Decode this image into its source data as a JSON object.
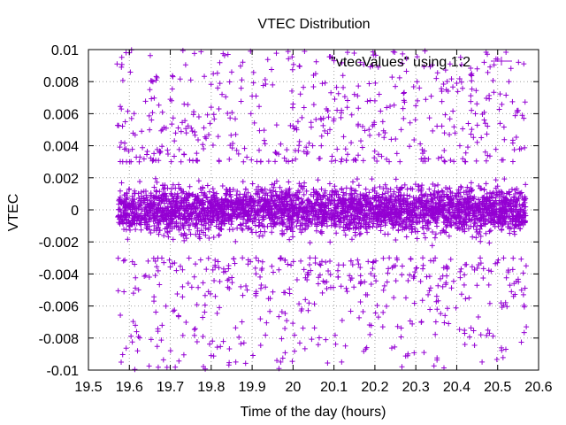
{
  "chart_data": {
    "type": "scatter",
    "title": "VTEC Distribution",
    "xlabel": "Time of the day (hours)",
    "ylabel": "VTEC",
    "xlim": [
      19.5,
      20.6
    ],
    "ylim": [
      -0.01,
      0.01
    ],
    "xticks": [
      "19.5",
      "19.6",
      "19.7",
      "19.8",
      "19.9",
      "20",
      "20.1",
      "20.2",
      "20.3",
      "20.4",
      "20.5",
      "20.6"
    ],
    "xtick_values": [
      19.5,
      19.6,
      19.7,
      19.8,
      19.9,
      20.0,
      20.1,
      20.2,
      20.3,
      20.4,
      20.5,
      20.6
    ],
    "yticks": [
      "0.01",
      "0.008",
      "0.006",
      "0.004",
      "0.002",
      "0",
      "-0.002",
      "-0.004",
      "-0.006",
      "-0.008",
      "-0.01"
    ],
    "ytick_values": [
      0.01,
      0.008,
      0.006,
      0.004,
      0.002,
      0.0,
      -0.002,
      -0.004,
      -0.006,
      -0.008,
      -0.01
    ],
    "grid": true,
    "legend_position": "top-right",
    "series": [
      {
        "name": "\"vtecValues\" using 1:2",
        "marker": "plus",
        "color": "#9400d3",
        "x_range": [
          19.57,
          20.57
        ],
        "core_band": [
          -0.003,
          0.003
        ],
        "x": [
          19.57,
          19.58,
          19.6,
          19.62,
          19.65,
          19.68,
          19.7,
          19.72,
          19.75,
          19.78,
          19.8,
          19.82,
          19.85,
          19.88,
          19.9,
          19.92,
          19.95,
          19.98,
          20.0,
          20.02,
          20.05,
          20.08,
          20.1,
          20.12,
          20.15,
          20.18,
          20.2,
          20.22,
          20.25,
          20.28,
          20.3,
          20.32,
          20.35,
          20.38,
          20.4,
          20.42,
          20.45,
          20.48,
          20.5,
          20.52,
          20.55,
          20.57,
          19.59,
          19.61,
          19.63,
          19.66,
          19.69,
          19.73,
          19.77,
          19.81,
          19.86,
          19.91,
          19.96,
          20.03,
          20.07,
          20.13,
          20.17,
          20.23,
          20.27,
          20.33,
          20.37,
          20.43,
          20.47,
          20.53,
          20.56,
          19.58,
          19.64,
          19.71,
          19.84,
          19.97,
          20.11,
          20.24,
          20.36,
          20.46,
          20.54
        ],
        "y": [
          0.0091,
          -0.0095,
          0.0098,
          -0.0088,
          0.0075,
          -0.0072,
          0.0069,
          -0.0066,
          0.0081,
          -0.0079,
          0.0064,
          -0.0061,
          0.0086,
          -0.0083,
          0.0071,
          -0.0068,
          0.0078,
          -0.0074,
          0.0066,
          -0.0063,
          0.0084,
          -0.0081,
          0.0093,
          -0.0069,
          0.0072,
          -0.0086,
          0.0068,
          -0.0064,
          0.0077,
          -0.0091,
          0.0065,
          -0.0089,
          0.0082,
          -0.0071,
          0.0079,
          -0.0084,
          0.0088,
          -0.0077,
          0.0094,
          -0.0087,
          0.0062,
          -0.0073,
          0.0055,
          -0.0052,
          0.0049,
          -0.0057,
          0.0051,
          -0.0048,
          0.0058,
          -0.0054,
          0.0047,
          -0.0051,
          0.0053,
          -0.0056,
          0.0046,
          -0.0049,
          0.0052,
          -0.0045,
          0.0057,
          -0.0053,
          0.0048,
          -0.0055,
          0.0054,
          -0.0047,
          0.0059,
          0.0042,
          -0.0041,
          0.0043,
          -0.0044,
          0.0041,
          -0.0042,
          0.0044,
          -0.0043,
          0.0045,
          -0.0046
        ]
      }
    ]
  }
}
